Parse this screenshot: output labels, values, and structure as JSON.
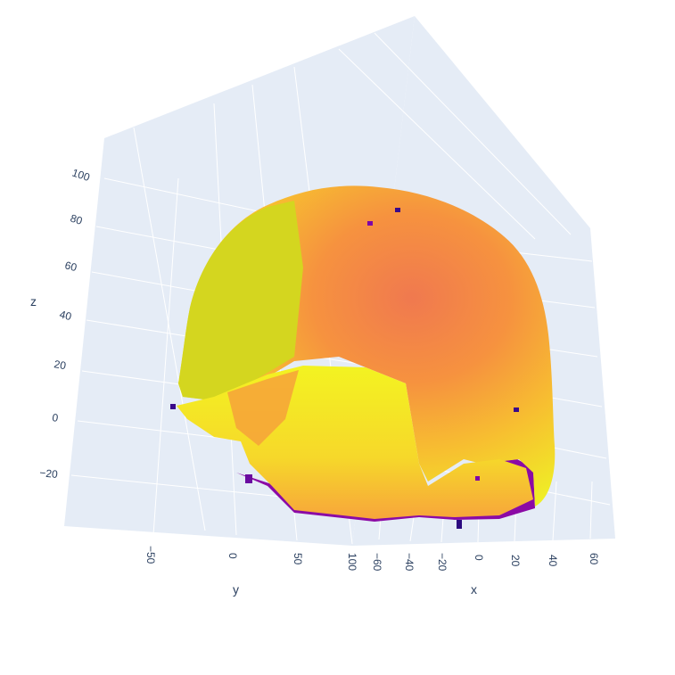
{
  "chart_data": {
    "type": "surface",
    "title": "",
    "axes": {
      "x": {
        "title": "x",
        "ticks": [
          "−60",
          "−40",
          "−20",
          "0",
          "20",
          "40",
          "60"
        ]
      },
      "y": {
        "title": "y",
        "ticks": [
          "−50",
          "0",
          "50",
          "100"
        ]
      },
      "z": {
        "title": "z",
        "ticks": [
          "100",
          "80",
          "60",
          "40",
          "20",
          "0",
          "−20"
        ]
      }
    },
    "scene": {
      "background": "#e5ecf6",
      "gridline_color": "#ffffff",
      "colorscale": [
        "#0d0887",
        "#7e03a8",
        "#cc4778",
        "#f89540",
        "#f0f921"
      ]
    },
    "surface_description": "3D triangulated mesh of a skull, colored by intensity"
  }
}
